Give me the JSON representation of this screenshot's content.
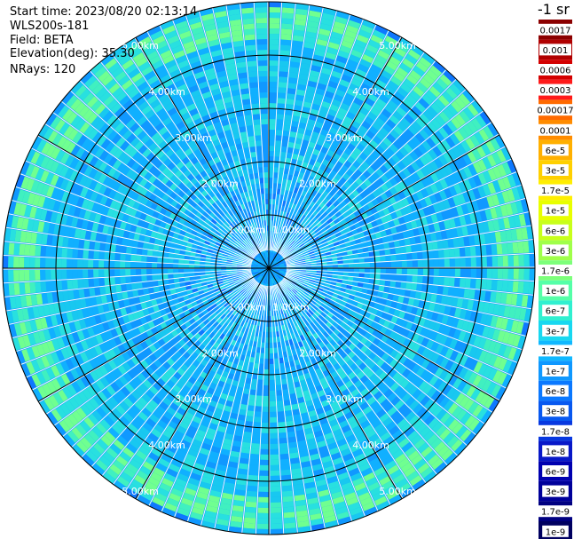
{
  "header": {
    "start_time": "Start time: 2023/08/20 02:13:14",
    "instrument": "WLS200s-181",
    "field": "Field: BETA",
    "elevation": "Elevation(deg): 35.30",
    "nrays": "NRays: 120"
  },
  "chart_data": {
    "type": "heatmap",
    "projection": "polar",
    "n_rays": 120,
    "range_rings_km": [
      1,
      2,
      3,
      4,
      5
    ],
    "ring_labels": [
      "1.00km",
      "2.00km",
      "3.00km",
      "4.00km",
      "5.00km"
    ],
    "max_range_km": 5.0,
    "spoke_step_deg": 30,
    "colorbar": {
      "title": "-1 sr",
      "ticks": [
        "0.0017",
        "0.001",
        "0.0006",
        "0.0003",
        "0.00017",
        "0.0001",
        "6e-5",
        "3e-5",
        "1.7e-5",
        "1e-5",
        "6e-6",
        "3e-6",
        "1.7e-6",
        "1e-6",
        "6e-7",
        "3e-7",
        "1.7e-7",
        "1e-7",
        "6e-8",
        "3e-8",
        "1.7e-8",
        "1e-8",
        "6e-9",
        "3e-9",
        "1.7e-9",
        "1e-9"
      ],
      "colors": [
        "#8b0000",
        "#b00000",
        "#d40000",
        "#ff1a1a",
        "#ff6a00",
        "#ff8c00",
        "#ffb000",
        "#ffd000",
        "#ffee00",
        "#e8ff00",
        "#c8ff1a",
        "#a0ff4a",
        "#7dff7a",
        "#55ffa8",
        "#30f0d0",
        "#18d8f0",
        "#10b8ff",
        "#0f98ff",
        "#0a78ff",
        "#0858f0",
        "#0838e0",
        "#0818c8",
        "#0000b0",
        "#00009a",
        "#000080",
        "#000060"
      ],
      "scale": "log"
    }
  }
}
